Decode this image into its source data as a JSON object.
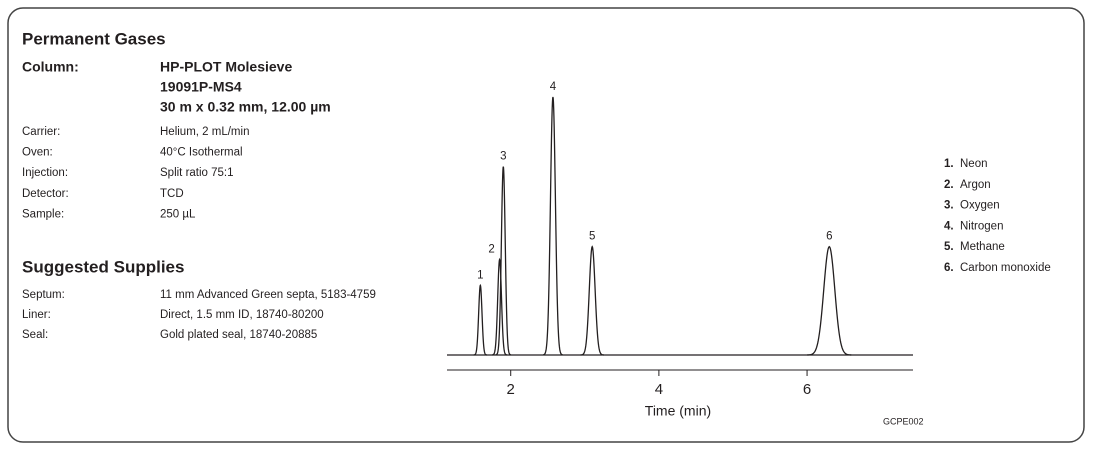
{
  "header": {
    "title": "Permanent Gases"
  },
  "column": {
    "label": "Column:",
    "lines": [
      "HP-PLOT Molesieve",
      "19091P-MS4",
      "30 m x 0.32 mm, 12.00 µm"
    ]
  },
  "conditions": [
    {
      "label": "Carrier:",
      "value": "Helium, 2 mL/min"
    },
    {
      "label": "Oven:",
      "value": "40°C Isothermal"
    },
    {
      "label": "Injection:",
      "value": "Split ratio 75:1"
    },
    {
      "label": "Detector:",
      "value": "TCD"
    },
    {
      "label": "Sample:",
      "value": "250 µL"
    }
  ],
  "supplies": {
    "title": "Suggested Supplies",
    "rows": [
      {
        "label": "Septum:",
        "value": "11 mm Advanced Green septa, 5183-4759"
      },
      {
        "label": "Liner:",
        "value": "Direct, 1.5 mm ID, 18740-80200"
      },
      {
        "label": "Seal:",
        "value": "Gold plated seal, 18740-20885"
      }
    ]
  },
  "chromatogram": {
    "type": "line",
    "xlabel": "Time (min)",
    "xlim": [
      1.14,
      7.43
    ],
    "xticks": [
      2,
      4,
      6
    ],
    "peaks": [
      {
        "label": "1",
        "time": 1.59,
        "height": 27
      },
      {
        "label": "2",
        "time": 1.85,
        "height": 37
      },
      {
        "label": "3",
        "time": 1.9,
        "height": 73
      },
      {
        "label": "4",
        "time": 2.57,
        "height": 100
      },
      {
        "label": "5",
        "time": 3.1,
        "height": 42
      },
      {
        "label": "6",
        "time": 6.3,
        "height": 42
      }
    ]
  },
  "legend": [
    {
      "number": "1.",
      "name": "Neon"
    },
    {
      "number": "2.",
      "name": "Argon"
    },
    {
      "number": "3.",
      "name": "Oxygen"
    },
    {
      "number": "4.",
      "name": "Nitrogen"
    },
    {
      "number": "5.",
      "name": "Methane"
    },
    {
      "number": "6.",
      "name": "Carbon monoxide"
    }
  ],
  "figure_code": "GCPE002"
}
